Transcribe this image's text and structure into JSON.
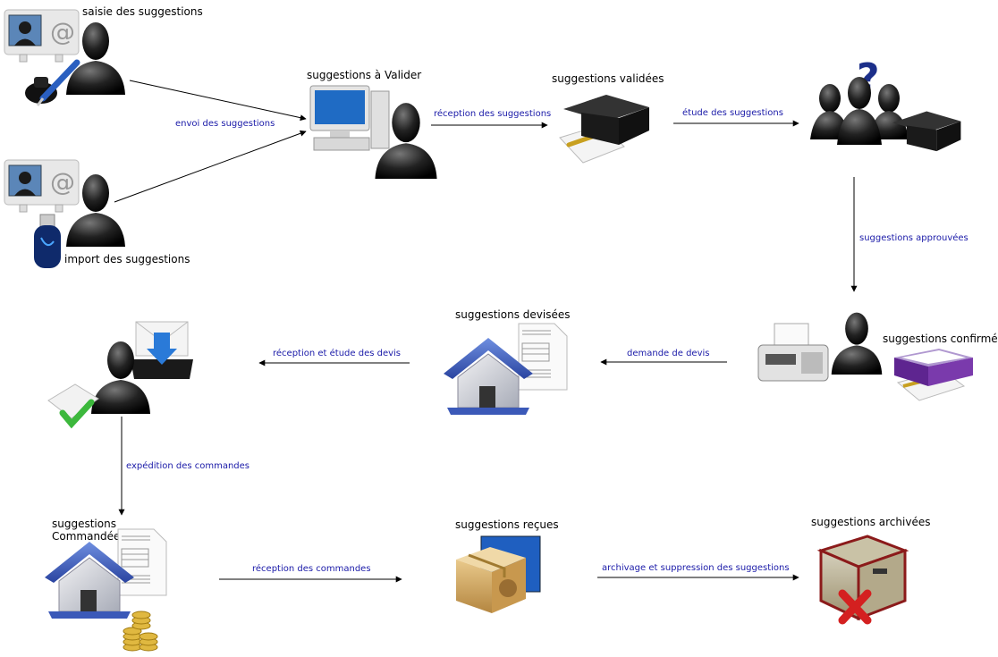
{
  "nodes": {
    "saisie": "saisie des suggestions",
    "import": "import des suggestions",
    "a_valider": "suggestions à Valider",
    "validees": "suggestions validées",
    "confirmees": "suggestions confirmées",
    "devisees": "suggestions devisées",
    "commandees_line1": "suggestions",
    "commandees_line2": "Commandées",
    "recues": "suggestions reçues",
    "archivees": "suggestions archivées"
  },
  "edges": {
    "envoi": "envoi des suggestions",
    "reception": "réception des suggestions",
    "etude": "étude des suggestions",
    "approuvees": "suggestions approuvées",
    "demande_devis": "demande de devis",
    "reception_devis": "réception et étude des devis",
    "expedition": "expédition des commandes",
    "reception_commandes": "réception des commandes",
    "archivage": "archivage et suppression des suggestions"
  },
  "colors": {
    "edge_label": "#1a1aa8",
    "house_roof": "#3b59b8",
    "check": "#3cb83c",
    "cross": "#d42020",
    "box_purple": "#6a2a9a",
    "question": "#1c2f8a",
    "download_arrow": "#2a7ad8"
  },
  "icons": [
    "address-card-icon",
    "person-icon",
    "ink-pen-icon",
    "usb-stick-icon",
    "computer-icon",
    "black-box-icon",
    "notepad-icon",
    "question-mark-icon",
    "fax-icon",
    "purple-box-icon",
    "house-icon",
    "document-icon",
    "mail-download-icon",
    "check-envelope-icon",
    "coins-icon",
    "package-icon",
    "archive-box-icon"
  ]
}
